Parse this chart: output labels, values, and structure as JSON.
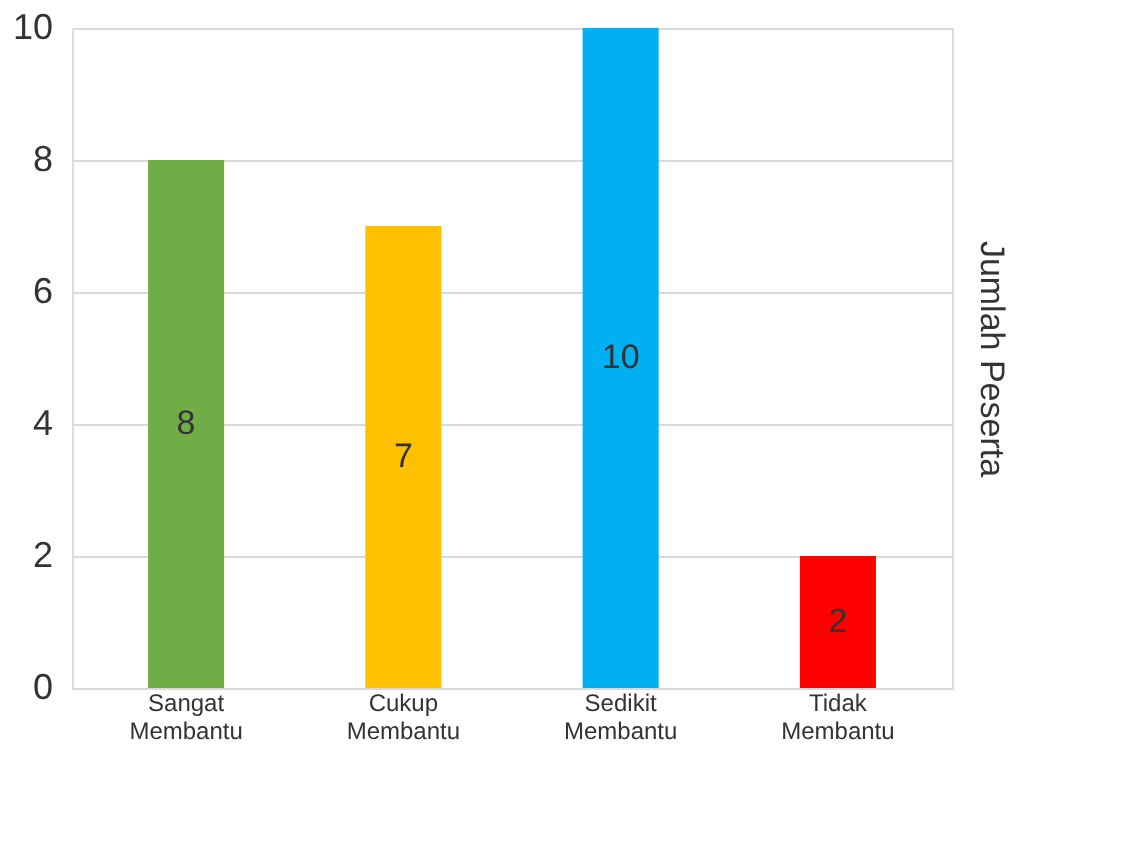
{
  "chart_data": {
    "type": "bar",
    "categories": [
      "Sangat Membantu",
      "Cukup Membantu",
      "Sedikit Membantu",
      "Tidak Membantu"
    ],
    "values": [
      8,
      7,
      10,
      2
    ],
    "colors": [
      "#70ad47",
      "#ffc000",
      "#00b0f0",
      "#ff0000"
    ],
    "ylabel": "Jumlah Peserta",
    "ylim": [
      0,
      10
    ],
    "yticks": [
      0,
      2,
      4,
      6,
      8,
      10
    ],
    "grid": "y",
    "data_labels": true
  }
}
